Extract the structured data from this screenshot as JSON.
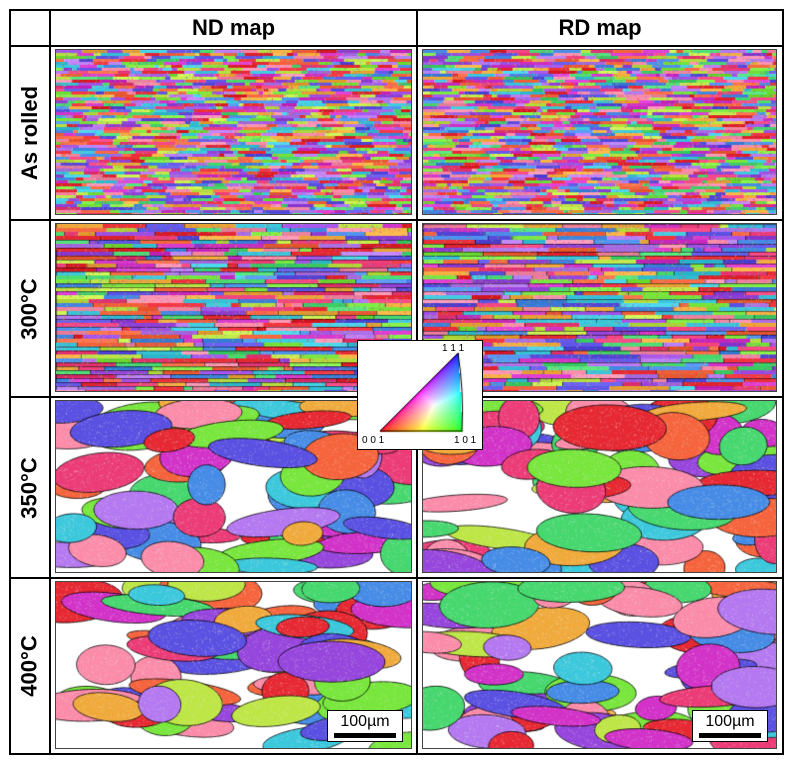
{
  "columns": [
    {
      "label": "ND map"
    },
    {
      "label": "RD map"
    }
  ],
  "rows": [
    {
      "label": "As rolled",
      "grain": "fine"
    },
    {
      "label": "300°C",
      "grain": "banded"
    },
    {
      "label": "350°C",
      "grain": "coarse"
    },
    {
      "label": "400°C",
      "grain": "coarse"
    }
  ],
  "scale_bar": {
    "label": "100µm"
  },
  "ipf_legend": {
    "corner_001": "0 0 1",
    "corner_101": "1 0 1",
    "corner_111": "1 1 1",
    "colors": {
      "001": "#ff0000",
      "101": "#00ff00",
      "111": "#0000ff"
    }
  }
}
